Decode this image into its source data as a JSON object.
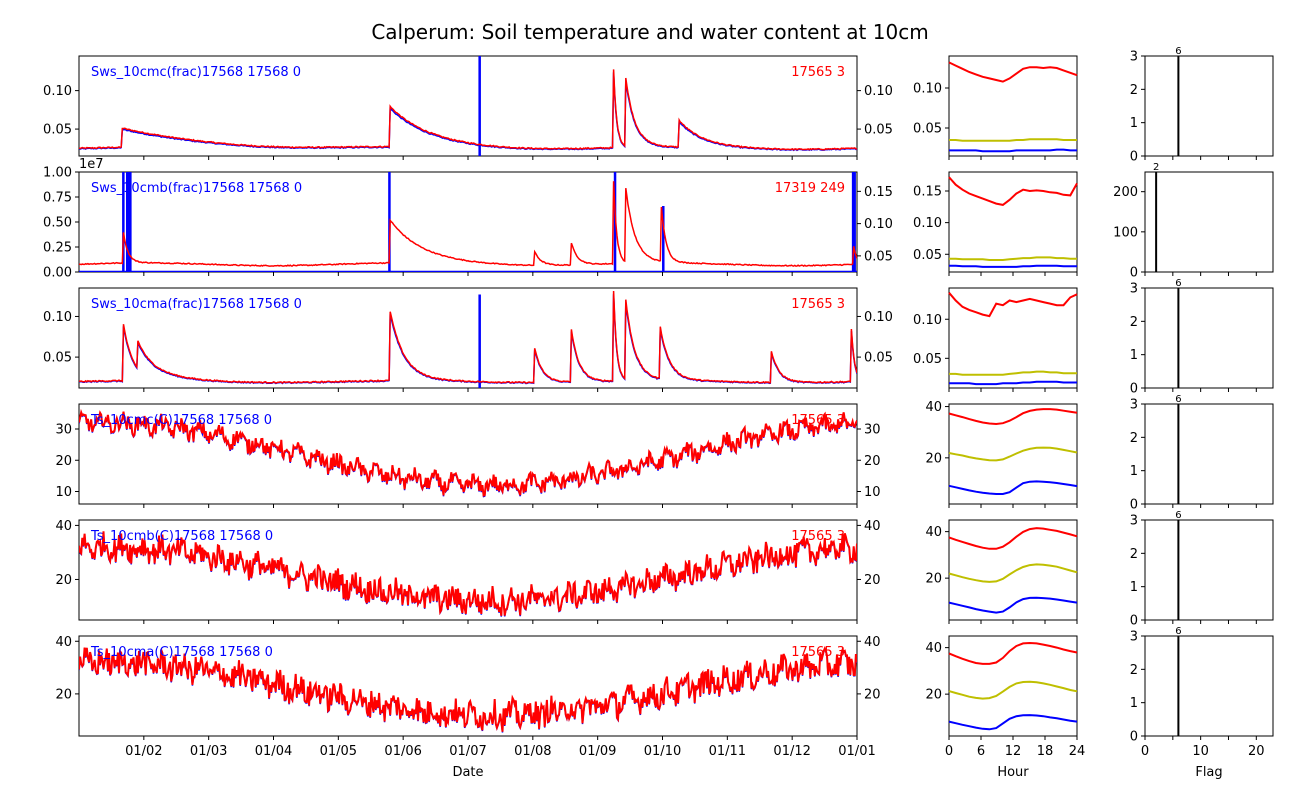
{
  "title": "Calperum: Soil temperature and water content at 10cm",
  "colors": {
    "left_series": "#0000ff",
    "right_series": "#ff0000",
    "diurnal_mean": "#bfbf00",
    "flag_bar": "#000000"
  },
  "chart_data": [
    {
      "type": "line",
      "panel": "Sws_10cmc",
      "series": [
        {
          "name": "Sws_10cmc(frac)",
          "color": "#0000ff"
        },
        {
          "color": "#ff0000"
        }
      ],
      "left_label": "Sws_10cmc(frac)17568 17568 0",
      "right_label": "17565 3",
      "ylim_left": [
        0.015,
        0.145
      ],
      "yticks_left": [
        "0.05",
        "0.10"
      ],
      "ylim_right": [
        0.015,
        0.145
      ],
      "yticks_right": [
        "0.05",
        "0.10"
      ],
      "x_range": [
        "01/01",
        "01/01"
      ],
      "base": 0.025,
      "events": [
        {
          "x": 0.055,
          "peak": 0.05,
          "decay": 0.1
        },
        {
          "x": 0.399,
          "peak": 0.078,
          "decay": 0.05
        },
        {
          "x": 0.687,
          "peak": 0.13,
          "decay": 0.004
        },
        {
          "x": 0.702,
          "peak": 0.12,
          "decay": 0.012
        },
        {
          "x": 0.771,
          "peak": 0.06,
          "decay": 0.03
        }
      ],
      "left_spikes": [
        {
          "x": 0.515,
          "value": 0.145
        }
      ]
    },
    {
      "type": "line",
      "panel": "Sws_10cmb",
      "series": [
        {
          "name": "Sws_10cmb(frac)",
          "color": "#0000ff"
        },
        {
          "color": "#ff0000"
        }
      ],
      "left_label": "Sws_10cmb(frac)17568 17568 0",
      "right_label": "17319 249",
      "ylim_left": [
        0,
        1.0
      ],
      "yticks_left": [
        "0.00",
        "0.25",
        "0.50",
        "0.75",
        "1.00"
      ],
      "multiplier": "1e7",
      "ylim_right": [
        0.025,
        0.18
      ],
      "yticks_right": [
        "0.05",
        "0.10",
        "0.15"
      ],
      "x_range": [
        "01/01",
        "01/01"
      ],
      "base": 0.037,
      "events": [
        {
          "x": 0.057,
          "peak": 0.085,
          "decay": 0.006
        },
        {
          "x": 0.399,
          "peak": 0.105,
          "decay": 0.04
        },
        {
          "x": 0.585,
          "peak": 0.06,
          "decay": 0.008
        },
        {
          "x": 0.632,
          "peak": 0.075,
          "decay": 0.008
        },
        {
          "x": 0.687,
          "peak": 0.17,
          "decay": 0.004
        },
        {
          "x": 0.702,
          "peak": 0.16,
          "decay": 0.012
        },
        {
          "x": 0.748,
          "peak": 0.13,
          "decay": 0.006
        },
        {
          "x": 0.995,
          "peak": 0.07,
          "decay": 0.004
        }
      ],
      "left_spikes": [
        {
          "x": 0.057,
          "value": 1.0
        },
        {
          "x": 0.062,
          "value": 1.0
        },
        {
          "x": 0.064,
          "value": 1.0
        },
        {
          "x": 0.066,
          "value": 1.0
        },
        {
          "x": 0.399,
          "value": 1.0
        },
        {
          "x": 0.689,
          "value": 1.0
        },
        {
          "x": 0.751,
          "value": 0.66
        },
        {
          "x": 0.995,
          "value": 1.0
        },
        {
          "x": 0.997,
          "value": 1.0
        }
      ]
    },
    {
      "type": "line",
      "panel": "Sws_10cma",
      "series": [
        {
          "name": "Sws_10cma(frac)",
          "color": "#0000ff"
        },
        {
          "color": "#ff0000"
        }
      ],
      "left_label": "Sws_10cma(frac)17568 17568 0",
      "right_label": "17565 3",
      "ylim_left": [
        0.012,
        0.135
      ],
      "yticks_left": [
        "0.05",
        "0.10"
      ],
      "ylim_right": [
        0.012,
        0.135
      ],
      "yticks_right": [
        "0.05",
        "0.10"
      ],
      "x_range": [
        "01/01",
        "01/01"
      ],
      "base": 0.02,
      "events": [
        {
          "x": 0.057,
          "peak": 0.09,
          "decay": 0.012
        },
        {
          "x": 0.075,
          "peak": 0.055,
          "decay": 0.03
        },
        {
          "x": 0.399,
          "peak": 0.11,
          "decay": 0.018
        },
        {
          "x": 0.585,
          "peak": 0.065,
          "decay": 0.01
        },
        {
          "x": 0.632,
          "peak": 0.09,
          "decay": 0.01
        },
        {
          "x": 0.687,
          "peak": 0.135,
          "decay": 0.004
        },
        {
          "x": 0.702,
          "peak": 0.125,
          "decay": 0.012
        },
        {
          "x": 0.746,
          "peak": 0.09,
          "decay": 0.012
        },
        {
          "x": 0.89,
          "peak": 0.058,
          "decay": 0.01
        },
        {
          "x": 0.992,
          "peak": 0.1,
          "decay": 0.004
        }
      ],
      "left_spikes": [
        {
          "x": 0.515,
          "value": 0.127
        }
      ]
    },
    {
      "type": "line",
      "panel": "Ts_10cmc",
      "series": [
        {
          "name": "Ts_10cmc(C)",
          "color": "#0000ff"
        },
        {
          "color": "#ff0000"
        }
      ],
      "left_label": "Ts_10cmc(C)17568 17568 0",
      "right_label": "17565 3",
      "ylim_left": [
        6,
        38
      ],
      "yticks_left": [
        "10",
        "20",
        "30"
      ],
      "ylim_right": [
        6,
        38
      ],
      "yticks_right": [
        "10",
        "20",
        "30"
      ],
      "x_range": [
        "01/01",
        "01/01"
      ],
      "daily_amplitude": 2.5
    },
    {
      "type": "line",
      "panel": "Ts_10cmb",
      "series": [
        {
          "name": "Ts_10cmb(C)",
          "color": "#0000ff"
        },
        {
          "color": "#ff0000"
        }
      ],
      "left_label": "Ts_10cmb(C)17568 17568 0",
      "right_label": "17565 3",
      "ylim_left": [
        5,
        42
      ],
      "yticks_left": [
        "20",
        "40"
      ],
      "ylim_right": [
        5,
        42
      ],
      "yticks_right": [
        "20",
        "40"
      ],
      "x_range": [
        "01/01",
        "01/01"
      ],
      "daily_amplitude": 4.5
    },
    {
      "type": "line",
      "panel": "Ts_10cma",
      "series": [
        {
          "name": "Ts_10cma(C)",
          "color": "#0000ff"
        },
        {
          "color": "#ff0000"
        }
      ],
      "left_label": "Ts_10cma(C)17568 17568 0",
      "right_label": "17565 3",
      "ylim_left": [
        4,
        42
      ],
      "yticks_left": [
        "20",
        "40"
      ],
      "ylim_right": [
        4,
        42
      ],
      "yticks_right": [
        "20",
        "40"
      ],
      "x_range": [
        "01/01",
        "01/01"
      ],
      "daily_amplitude": 5.0
    },
    {
      "type": "line",
      "panel": "diurnal",
      "xlabel": "Hour",
      "xlim": [
        0,
        24
      ],
      "xticks": [
        "0",
        "6",
        "12",
        "18",
        "24"
      ],
      "series": [
        {
          "panel": 1,
          "ylim": [
            0.015,
            0.14
          ],
          "yticks": [
            "0.05",
            "0.10"
          ],
          "max": [
            0.132,
            0.128,
            0.124,
            0.12,
            0.117,
            0.114,
            0.112,
            0.11,
            0.108,
            0.112,
            0.118,
            0.124,
            0.126,
            0.126,
            0.125,
            0.126,
            0.125,
            0.122,
            0.119,
            0.116
          ],
          "mean": [
            0.035,
            0.035,
            0.034,
            0.034,
            0.034,
            0.034,
            0.034,
            0.034,
            0.034,
            0.034,
            0.035,
            0.035,
            0.036,
            0.036,
            0.036,
            0.036,
            0.036,
            0.035,
            0.035,
            0.035
          ],
          "min": [
            0.022,
            0.022,
            0.022,
            0.022,
            0.022,
            0.021,
            0.021,
            0.021,
            0.021,
            0.021,
            0.022,
            0.022,
            0.022,
            0.022,
            0.022,
            0.022,
            0.023,
            0.023,
            0.022,
            0.022
          ]
        },
        {
          "panel": 2,
          "ylim": [
            0.022,
            0.18
          ],
          "yticks": [
            "0.05",
            "0.10",
            "0.15"
          ],
          "max": [
            0.172,
            0.16,
            0.152,
            0.146,
            0.142,
            0.138,
            0.134,
            0.13,
            0.128,
            0.136,
            0.146,
            0.152,
            0.15,
            0.151,
            0.15,
            0.148,
            0.147,
            0.144,
            0.143,
            0.162
          ],
          "mean": [
            0.043,
            0.043,
            0.042,
            0.042,
            0.042,
            0.042,
            0.041,
            0.041,
            0.041,
            0.042,
            0.043,
            0.044,
            0.044,
            0.045,
            0.045,
            0.045,
            0.044,
            0.044,
            0.043,
            0.043
          ],
          "min": [
            0.032,
            0.032,
            0.031,
            0.031,
            0.031,
            0.03,
            0.03,
            0.03,
            0.03,
            0.03,
            0.03,
            0.031,
            0.031,
            0.032,
            0.032,
            0.032,
            0.032,
            0.031,
            0.031,
            0.031
          ]
        },
        {
          "panel": 3,
          "ylim": [
            0.012,
            0.14
          ],
          "yticks": [
            "0.05",
            "0.10"
          ],
          "max": [
            0.134,
            0.124,
            0.116,
            0.112,
            0.109,
            0.106,
            0.104,
            0.12,
            0.118,
            0.124,
            0.122,
            0.124,
            0.126,
            0.124,
            0.122,
            0.12,
            0.118,
            0.118,
            0.128,
            0.132
          ],
          "mean": [
            0.03,
            0.03,
            0.029,
            0.029,
            0.029,
            0.029,
            0.029,
            0.029,
            0.029,
            0.03,
            0.031,
            0.032,
            0.032,
            0.033,
            0.033,
            0.032,
            0.032,
            0.031,
            0.031,
            0.031
          ],
          "min": [
            0.018,
            0.018,
            0.018,
            0.018,
            0.017,
            0.017,
            0.017,
            0.017,
            0.018,
            0.018,
            0.018,
            0.019,
            0.019,
            0.02,
            0.02,
            0.02,
            0.02,
            0.019,
            0.019,
            0.019
          ]
        },
        {
          "panel": 4,
          "ylim": [
            2,
            41
          ],
          "yticks": [
            "20",
            "40"
          ],
          "max": [
            37.3,
            36.6,
            35.9,
            35.1,
            34.4,
            33.8,
            33.4,
            33.2,
            33.5,
            34.5,
            35.9,
            37.4,
            38.3,
            38.8,
            39.0,
            39.0,
            38.8,
            38.4,
            38.0,
            37.6
          ],
          "mean": [
            21.9,
            21.4,
            20.9,
            20.3,
            19.8,
            19.4,
            19.1,
            19.0,
            19.4,
            20.5,
            21.7,
            22.8,
            23.5,
            23.9,
            24.0,
            23.9,
            23.6,
            23.1,
            22.6,
            22.1
          ],
          "min": [
            9.1,
            8.5,
            7.9,
            7.3,
            6.8,
            6.4,
            6.1,
            5.9,
            5.9,
            6.6,
            8.4,
            10.1,
            10.7,
            10.8,
            10.7,
            10.5,
            10.2,
            9.8,
            9.4,
            9.0
          ]
        },
        {
          "panel": 5,
          "ylim": [
            2,
            45
          ],
          "yticks": [
            "20",
            "40"
          ],
          "max": [
            37.5,
            36.5,
            35.6,
            34.7,
            33.8,
            33.1,
            32.6,
            32.6,
            33.5,
            35.4,
            37.8,
            39.9,
            41.1,
            41.5,
            41.3,
            40.8,
            40.3,
            39.6,
            38.8,
            38.0
          ],
          "mean": [
            22.0,
            21.2,
            20.4,
            19.7,
            19.1,
            18.6,
            18.4,
            18.6,
            19.7,
            21.6,
            23.4,
            24.8,
            25.6,
            25.9,
            25.8,
            25.4,
            24.9,
            24.1,
            23.3,
            22.5
          ],
          "min": [
            9.5,
            8.8,
            8.1,
            7.4,
            6.7,
            6.1,
            5.6,
            5.2,
            5.6,
            7.4,
            9.6,
            11.0,
            11.5,
            11.6,
            11.4,
            11.2,
            10.8,
            10.4,
            9.9,
            9.5
          ]
        },
        {
          "panel": 6,
          "ylim": [
            2,
            45
          ],
          "yticks": [
            "20",
            "40"
          ],
          "max": [
            37.5,
            36.3,
            35.2,
            34.2,
            33.4,
            33.0,
            33.0,
            33.6,
            35.6,
            38.5,
            40.7,
            41.8,
            42.0,
            41.8,
            41.3,
            40.7,
            40.0,
            39.2,
            38.5,
            37.9
          ],
          "mean": [
            21.3,
            20.5,
            19.7,
            18.9,
            18.4,
            18.1,
            18.3,
            19.2,
            21.1,
            23.1,
            24.6,
            25.2,
            25.3,
            25.1,
            24.6,
            24.0,
            23.3,
            22.6,
            21.8,
            21.2
          ],
          "min": [
            8.2,
            7.5,
            6.8,
            6.2,
            5.6,
            5.1,
            4.9,
            5.4,
            7.4,
            9.4,
            10.5,
            10.9,
            11.0,
            10.8,
            10.5,
            10.0,
            9.6,
            9.1,
            8.6,
            8.2
          ]
        }
      ]
    },
    {
      "type": "bar",
      "panel": "flag",
      "xlabel": "Flag",
      "xlim": [
        0,
        23
      ],
      "xticks": [
        "0",
        "10",
        "20"
      ],
      "series": [
        {
          "panel": 1,
          "flag": 6,
          "count_label": "6",
          "height": 3,
          "ylim": [
            0,
            3
          ],
          "yticks": [
            "0",
            "1",
            "2",
            "3"
          ]
        },
        {
          "panel": 2,
          "flag": 2,
          "count_label": "2",
          "height": 249,
          "ylim": [
            0,
            249
          ],
          "yticks": [
            "0",
            "100",
            "200"
          ]
        },
        {
          "panel": 3,
          "flag": 6,
          "count_label": "6",
          "height": 3,
          "ylim": [
            0,
            3
          ],
          "yticks": [
            "0",
            "1",
            "2",
            "3"
          ]
        },
        {
          "panel": 4,
          "flag": 6,
          "count_label": "6",
          "height": 3,
          "ylim": [
            0,
            3
          ],
          "yticks": [
            "0",
            "1",
            "2",
            "3"
          ]
        },
        {
          "panel": 5,
          "flag": 6,
          "count_label": "6",
          "height": 3,
          "ylim": [
            0,
            3
          ],
          "yticks": [
            "0",
            "1",
            "2",
            "3"
          ]
        },
        {
          "panel": 6,
          "flag": 6,
          "count_label": "6",
          "height": 3,
          "ylim": [
            0,
            3
          ],
          "yticks": [
            "0",
            "1",
            "2",
            "3"
          ]
        }
      ]
    }
  ],
  "time_axis": {
    "xlabel": "Date",
    "tick_labels": [
      "01/02",
      "01/03",
      "01/04",
      "01/05",
      "01/06",
      "01/07",
      "01/08",
      "01/09",
      "01/10",
      "01/11",
      "01/12",
      "01/01"
    ]
  }
}
